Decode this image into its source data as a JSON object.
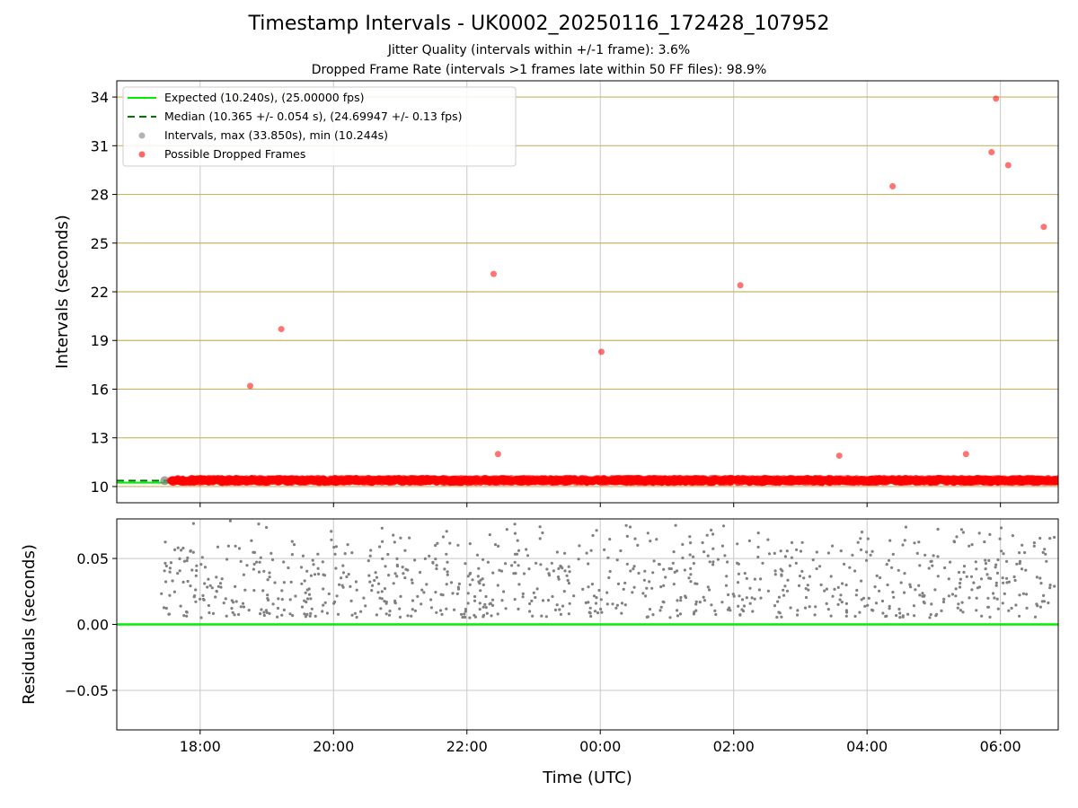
{
  "title": "Timestamp Intervals - UK0002_20250116_172428_107952",
  "subtitle_1": "Jitter Quality (intervals within +/-1 frame): 3.6%",
  "subtitle_2": "Dropped Frame Rate (intervals >1 frames late within 50 FF files): 98.9%",
  "colors": {
    "expected": "#00ee00",
    "median": "#007700",
    "interval": "#808080",
    "dropped": "#ff0000",
    "hgrid": "#c8b464",
    "vgrid": "#c8c8c8"
  },
  "chart_data": [
    {
      "type": "scatter",
      "ylabel": "Intervals (seconds)",
      "x_range": [
        "16:45",
        "06:52"
      ],
      "ylim": [
        9.0,
        35.0
      ],
      "yticks": [
        10,
        13,
        16,
        19,
        22,
        25,
        28,
        31,
        34
      ],
      "xticks": [
        "18:00",
        "20:00",
        "22:00",
        "00:00",
        "02:00",
        "04:00",
        "06:00"
      ],
      "grid": true,
      "legend_position": "upper-left",
      "legend": [
        "Expected (10.240s), (25.00000 fps)",
        "Median (10.365 +/- 0.054 s), (24.69947 +/- 0.13 fps)",
        "Intervals, max (33.850s), min (10.244s)",
        "Possible Dropped Frames"
      ],
      "expected_interval": 10.24,
      "median_interval": 10.365,
      "baseline_band": {
        "x_start": "17:33",
        "x_end": "06:52",
        "y_min": 10.25,
        "y_max": 10.5
      },
      "dropped_points": [
        {
          "x": "18:45",
          "y": 16.2
        },
        {
          "x": "19:13",
          "y": 19.7
        },
        {
          "x": "22:24",
          "y": 23.1
        },
        {
          "x": "22:28",
          "y": 12.0
        },
        {
          "x": "00:01",
          "y": 18.3
        },
        {
          "x": "02:06",
          "y": 22.4
        },
        {
          "x": "03:35",
          "y": 11.9
        },
        {
          "x": "04:23",
          "y": 28.5
        },
        {
          "x": "05:29",
          "y": 12.0
        },
        {
          "x": "05:52",
          "y": 30.6
        },
        {
          "x": "05:56",
          "y": 33.9
        },
        {
          "x": "06:07",
          "y": 29.8
        },
        {
          "x": "06:39",
          "y": 26.0
        }
      ]
    },
    {
      "type": "scatter",
      "xlabel": "Time (UTC)",
      "ylabel": "Residuals (seconds)",
      "x_range": [
        "16:45",
        "06:52"
      ],
      "ylim": [
        -0.08,
        0.08
      ],
      "yticks": [
        "−0.05",
        "0.00",
        "0.05"
      ],
      "ytick_values": [
        -0.05,
        0.0,
        0.05
      ],
      "xticks": [
        "18:00",
        "20:00",
        "22:00",
        "00:00",
        "02:00",
        "04:00",
        "06:00"
      ],
      "zero_line": 0.0,
      "residual_band": {
        "x_start": "17:25",
        "x_end": "06:52",
        "y_min": 0.005,
        "y_max": 0.08
      }
    }
  ]
}
